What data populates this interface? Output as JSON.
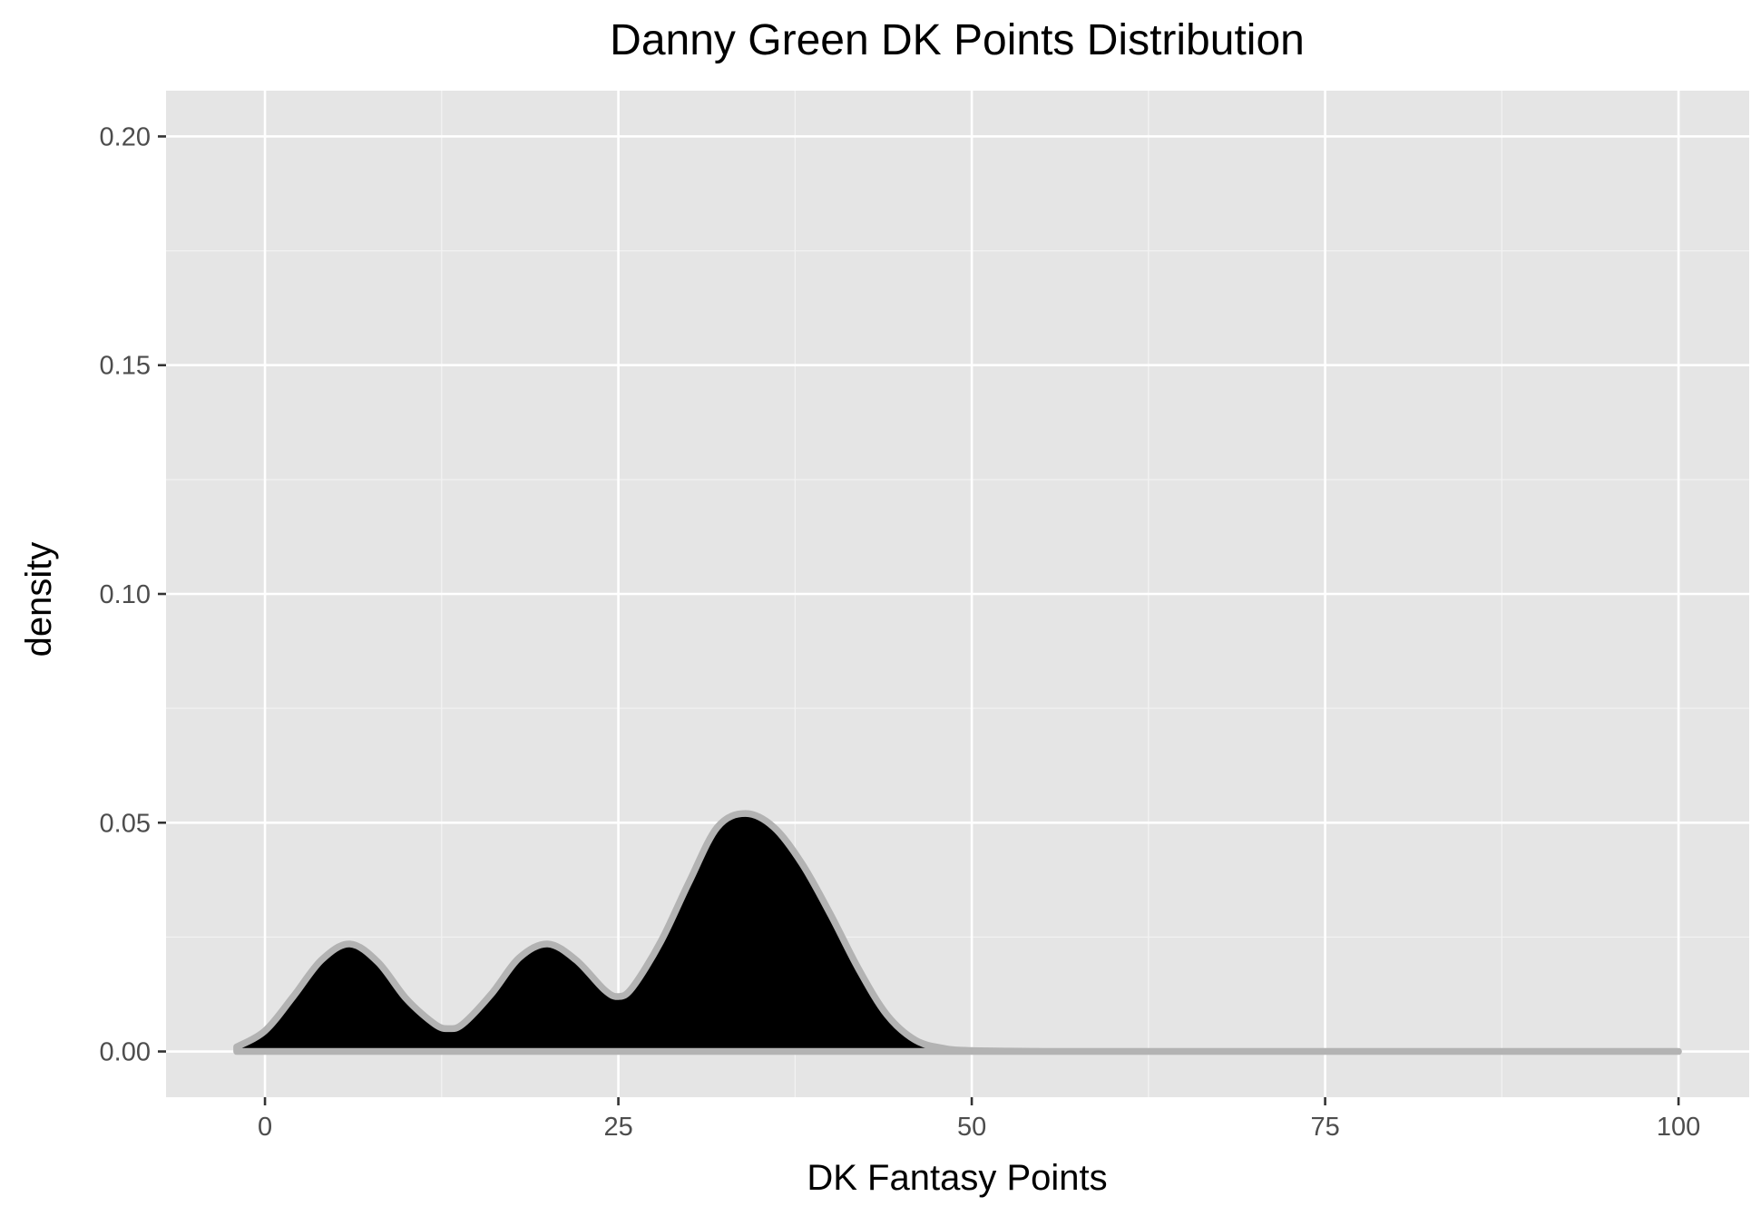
{
  "chart_data": {
    "type": "area",
    "title": "Danny Green DK Points Distribution",
    "xlabel": "DK Fantasy Points",
    "ylabel": "density",
    "xlim": [
      -7,
      105
    ],
    "ylim": [
      -0.01,
      0.21
    ],
    "x_ticks": [
      0,
      25,
      50,
      75,
      100
    ],
    "x_tick_labels": [
      "0",
      "25",
      "50",
      "75",
      "100"
    ],
    "y_ticks": [
      0,
      0.05,
      0.1,
      0.15,
      0.2
    ],
    "y_tick_labels": [
      "0.00",
      "0.05",
      "0.10",
      "0.15",
      "0.20"
    ],
    "grid": true,
    "legend": "none",
    "series": [
      {
        "x": [
          -2,
          0,
          2,
          4,
          6,
          8,
          10,
          12,
          13,
          14,
          16,
          18,
          20,
          22,
          24,
          25,
          26,
          28,
          30,
          32,
          34,
          36,
          38,
          40,
          42,
          44,
          46,
          48,
          50,
          55,
          60,
          70,
          80,
          90,
          100
        ],
        "y": [
          0.001,
          0.0045,
          0.012,
          0.02,
          0.0235,
          0.0195,
          0.0115,
          0.006,
          0.005,
          0.006,
          0.0125,
          0.0205,
          0.0235,
          0.02,
          0.0135,
          0.012,
          0.014,
          0.024,
          0.037,
          0.049,
          0.052,
          0.049,
          0.041,
          0.03,
          0.018,
          0.008,
          0.0025,
          0.0007,
          0.0002,
          2e-05,
          0,
          0,
          0,
          0,
          0
        ]
      }
    ],
    "colors": {
      "panel_background": "#e5e5e5",
      "grid_major": "#ffffff",
      "grid_minor": "#f2f2f2",
      "fill": "#000000",
      "line": "#b3b3b3",
      "tick_text": "#4d4d4d",
      "tick_mark": "#333333"
    }
  }
}
